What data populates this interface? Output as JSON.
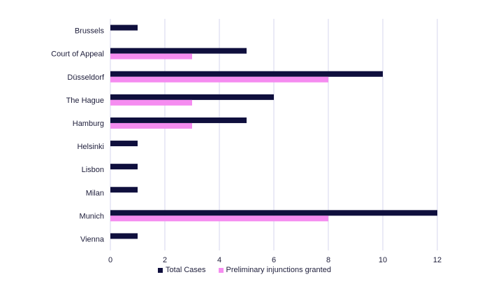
{
  "chart_data": {
    "type": "bar",
    "orientation": "horizontal",
    "categories": [
      "Brussels",
      "Court of Appeal",
      "Düsseldorf",
      "The Hague",
      "Hamburg",
      "Helsinki",
      "Lisbon",
      "Milan",
      "Munich",
      "Vienna"
    ],
    "series": [
      {
        "name": "Total Cases",
        "color": "#0f0f3d",
        "values": [
          1,
          5,
          10,
          6,
          5,
          1,
          1,
          1,
          12,
          1
        ]
      },
      {
        "name": "Preliminary injunctions granted",
        "color": "#f58cf0",
        "values": [
          0,
          3,
          8,
          3,
          3,
          0,
          0,
          0,
          8,
          0
        ]
      }
    ],
    "xlim": [
      0,
      12
    ],
    "xticks": [
      "0",
      "2",
      "4",
      "6",
      "8",
      "10",
      "12"
    ],
    "grid": true,
    "legend_position": "bottom"
  }
}
